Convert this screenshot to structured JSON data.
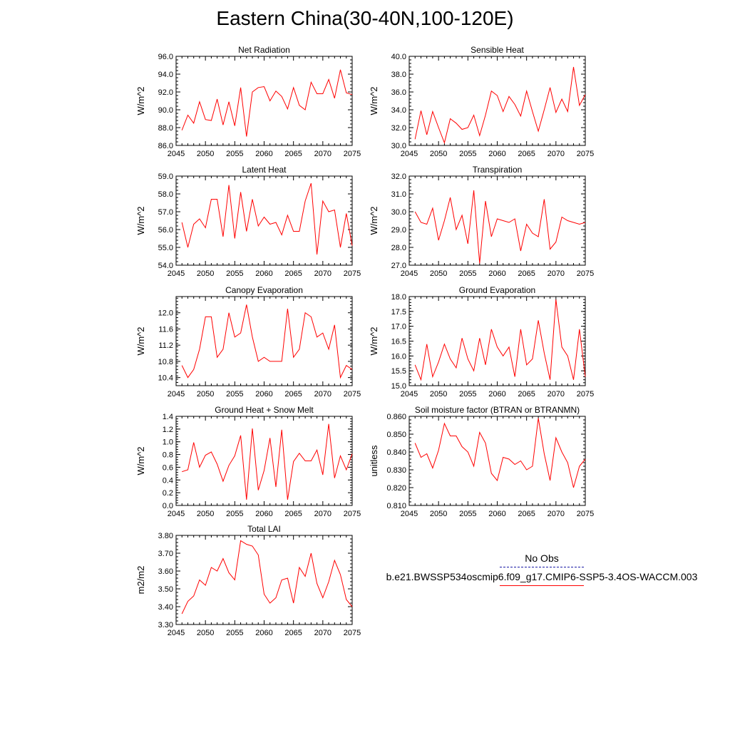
{
  "title": "Eastern China(30-40N,100-120E)",
  "colors": {
    "series": "#ff0000",
    "obs": "#1a1aa6",
    "axis": "#000000"
  },
  "legend": {
    "obs_label": "No Obs",
    "model_label": "b.e21.BWSSP534oscmip6.f09_g17.CMIP6-SSP5-3.4OS-WACCM.003"
  },
  "chart_data": [
    {
      "type": "line",
      "title": "Net Radiation",
      "ylabel": "W/m^2",
      "xlim": [
        2045,
        2075
      ],
      "ylim": [
        86.0,
        96.0
      ],
      "yticks": [
        "86.0",
        "88.0",
        "90.0",
        "92.0",
        "94.0",
        "96.0"
      ],
      "xticks": [
        "2045",
        "2050",
        "2055",
        "2060",
        "2065",
        "2070",
        "2075"
      ],
      "x": [
        2046,
        2047,
        2048,
        2049,
        2050,
        2051,
        2052,
        2053,
        2054,
        2055,
        2056,
        2057,
        2058,
        2059,
        2060,
        2061,
        2062,
        2063,
        2064,
        2065,
        2066,
        2067,
        2068,
        2069,
        2070,
        2071,
        2072,
        2073,
        2074,
        2075
      ],
      "series": [
        {
          "values": [
            87.7,
            89.4,
            88.5,
            90.9,
            88.9,
            88.8,
            91.2,
            88.3,
            90.9,
            88.2,
            92.5,
            87.0,
            92.0,
            92.5,
            92.6,
            91.0,
            92.1,
            91.5,
            90.1,
            92.5,
            90.5,
            90.0,
            93.1,
            91.8,
            91.8,
            93.4,
            91.3,
            94.5,
            91.9,
            91.7
          ]
        }
      ]
    },
    {
      "type": "line",
      "title": "Sensible Heat",
      "ylabel": "W/m^2",
      "xlim": [
        2045,
        2075
      ],
      "ylim": [
        30.0,
        40.0
      ],
      "yticks": [
        "30.0",
        "32.0",
        "34.0",
        "36.0",
        "38.0",
        "40.0"
      ],
      "xticks": [
        "2045",
        "2050",
        "2055",
        "2060",
        "2065",
        "2070",
        "2075"
      ],
      "x": [
        2046,
        2047,
        2048,
        2049,
        2050,
        2051,
        2052,
        2053,
        2054,
        2055,
        2056,
        2057,
        2058,
        2059,
        2060,
        2061,
        2062,
        2063,
        2064,
        2065,
        2066,
        2067,
        2068,
        2069,
        2070,
        2071,
        2072,
        2073,
        2074,
        2075
      ],
      "series": [
        {
          "values": [
            30.7,
            33.9,
            31.2,
            33.8,
            32.0,
            30.3,
            33.0,
            32.5,
            31.8,
            32.0,
            33.4,
            31.1,
            33.4,
            36.1,
            35.6,
            33.8,
            35.5,
            34.6,
            33.3,
            36.1,
            33.8,
            31.6,
            34.0,
            36.5,
            33.7,
            35.2,
            33.8,
            38.8,
            34.5,
            35.7
          ]
        }
      ]
    },
    {
      "type": "line",
      "title": "Latent Heat",
      "ylabel": "W/m^2",
      "xlim": [
        2045,
        2075
      ],
      "ylim": [
        54.0,
        59.0
      ],
      "yticks": [
        "54.0",
        "55.0",
        "56.0",
        "57.0",
        "58.0",
        "59.0"
      ],
      "xticks": [
        "2045",
        "2050",
        "2055",
        "2060",
        "2065",
        "2070",
        "2075"
      ],
      "x": [
        2046,
        2047,
        2048,
        2049,
        2050,
        2051,
        2052,
        2053,
        2054,
        2055,
        2056,
        2057,
        2058,
        2059,
        2060,
        2061,
        2062,
        2063,
        2064,
        2065,
        2066,
        2067,
        2068,
        2069,
        2070,
        2071,
        2072,
        2073,
        2074,
        2075
      ],
      "series": [
        {
          "values": [
            56.4,
            55.0,
            56.3,
            56.6,
            56.1,
            57.7,
            57.7,
            55.6,
            58.5,
            55.5,
            58.1,
            55.9,
            57.7,
            56.2,
            56.7,
            56.3,
            56.4,
            55.7,
            56.8,
            55.9,
            55.9,
            57.6,
            58.6,
            54.6,
            57.6,
            57.0,
            57.1,
            55.0,
            56.9,
            55.1
          ]
        }
      ]
    },
    {
      "type": "line",
      "title": "Transpiration",
      "ylabel": "W/m^2",
      "xlim": [
        2045,
        2075
      ],
      "ylim": [
        27.0,
        32.0
      ],
      "yticks": [
        "27.0",
        "28.0",
        "29.0",
        "30.0",
        "31.0",
        "32.0"
      ],
      "xticks": [
        "2045",
        "2050",
        "2055",
        "2060",
        "2065",
        "2070",
        "2075"
      ],
      "x": [
        2046,
        2047,
        2048,
        2049,
        2050,
        2051,
        2052,
        2053,
        2054,
        2055,
        2056,
        2057,
        2058,
        2059,
        2060,
        2061,
        2062,
        2063,
        2064,
        2065,
        2066,
        2067,
        2068,
        2069,
        2070,
        2071,
        2072,
        2073,
        2074,
        2075
      ],
      "series": [
        {
          "values": [
            30.0,
            29.4,
            29.3,
            30.2,
            28.4,
            29.5,
            30.8,
            29.0,
            29.8,
            28.2,
            31.2,
            27.1,
            30.6,
            28.6,
            29.6,
            29.5,
            29.4,
            29.6,
            27.8,
            29.3,
            28.8,
            28.6,
            30.7,
            27.9,
            28.3,
            29.7,
            29.5,
            29.4,
            29.3,
            29.4
          ]
        }
      ]
    },
    {
      "type": "line",
      "title": "Canopy Evaporation",
      "ylabel": "W/m^2",
      "xlim": [
        2045,
        2075
      ],
      "ylim": [
        10.2,
        12.4
      ],
      "yticks": [
        "10.4",
        "10.8",
        "11.2",
        "11.6",
        "12.0"
      ],
      "ytick_values": [
        10.4,
        10.8,
        11.2,
        11.6,
        12.0
      ],
      "xticks": [
        "2045",
        "2050",
        "2055",
        "2060",
        "2065",
        "2070",
        "2075"
      ],
      "x": [
        2046,
        2047,
        2048,
        2049,
        2050,
        2051,
        2052,
        2053,
        2054,
        2055,
        2056,
        2057,
        2058,
        2059,
        2060,
        2061,
        2062,
        2063,
        2064,
        2065,
        2066,
        2067,
        2068,
        2069,
        2070,
        2071,
        2072,
        2073,
        2074,
        2075
      ],
      "series": [
        {
          "values": [
            10.7,
            10.4,
            10.6,
            11.1,
            11.9,
            11.9,
            10.9,
            11.1,
            12.0,
            11.4,
            11.5,
            12.2,
            11.4,
            10.8,
            10.9,
            10.8,
            10.8,
            10.8,
            12.1,
            10.9,
            11.1,
            12.0,
            11.9,
            11.4,
            11.5,
            11.1,
            11.7,
            10.4,
            10.7,
            10.6
          ]
        }
      ]
    },
    {
      "type": "line",
      "title": "Ground Evaporation",
      "ylabel": "W/m^2",
      "xlim": [
        2045,
        2075
      ],
      "ylim": [
        15.0,
        18.0
      ],
      "yticks": [
        "15.0",
        "15.5",
        "16.0",
        "16.5",
        "17.0",
        "17.5",
        "18.0"
      ],
      "xticks": [
        "2045",
        "2050",
        "2055",
        "2060",
        "2065",
        "2070",
        "2075"
      ],
      "x": [
        2046,
        2047,
        2048,
        2049,
        2050,
        2051,
        2052,
        2053,
        2054,
        2055,
        2056,
        2057,
        2058,
        2059,
        2060,
        2061,
        2062,
        2063,
        2064,
        2065,
        2066,
        2067,
        2068,
        2069,
        2070,
        2071,
        2072,
        2073,
        2074,
        2075
      ],
      "series": [
        {
          "values": [
            15.7,
            15.2,
            16.4,
            15.3,
            15.8,
            16.4,
            15.9,
            15.6,
            16.6,
            15.9,
            15.5,
            16.6,
            15.7,
            16.9,
            16.3,
            16.0,
            16.3,
            15.3,
            16.9,
            15.7,
            15.9,
            17.2,
            16.1,
            15.2,
            17.9,
            16.3,
            16.0,
            15.2,
            16.9,
            15.3
          ]
        }
      ]
    },
    {
      "type": "line",
      "title": "Ground Heat + Snow Melt",
      "ylabel": "W/m^2",
      "xlim": [
        2045,
        2075
      ],
      "ylim": [
        0.0,
        1.4
      ],
      "yticks": [
        "0.0",
        "0.2",
        "0.4",
        "0.6",
        "0.8",
        "1.0",
        "1.2",
        "1.4"
      ],
      "xticks": [
        "2045",
        "2050",
        "2055",
        "2060",
        "2065",
        "2070",
        "2075"
      ],
      "x": [
        2046,
        2047,
        2048,
        2049,
        2050,
        2051,
        2052,
        2053,
        2054,
        2055,
        2056,
        2057,
        2058,
        2059,
        2060,
        2061,
        2062,
        2063,
        2064,
        2065,
        2066,
        2067,
        2068,
        2069,
        2070,
        2071,
        2072,
        2073,
        2074,
        2075
      ],
      "series": [
        {
          "values": [
            0.53,
            0.56,
            0.99,
            0.6,
            0.79,
            0.84,
            0.65,
            0.38,
            0.63,
            0.78,
            1.1,
            0.09,
            1.21,
            0.24,
            0.55,
            1.06,
            0.29,
            1.19,
            0.09,
            0.69,
            0.82,
            0.7,
            0.7,
            0.87,
            0.48,
            1.28,
            0.43,
            0.78,
            0.56,
            0.81
          ]
        }
      ]
    },
    {
      "type": "line",
      "title": "Soil moisture factor (BTRAN or BTRANMN)",
      "ylabel": "unitless",
      "xlim": [
        2045,
        2075
      ],
      "ylim": [
        0.81,
        0.86
      ],
      "yticks": [
        "0.810",
        "0.820",
        "0.830",
        "0.840",
        "0.850",
        "0.860"
      ],
      "xticks": [
        "2045",
        "2050",
        "2055",
        "2060",
        "2065",
        "2070",
        "2075"
      ],
      "x": [
        2046,
        2047,
        2048,
        2049,
        2050,
        2051,
        2052,
        2053,
        2054,
        2055,
        2056,
        2057,
        2058,
        2059,
        2060,
        2061,
        2062,
        2063,
        2064,
        2065,
        2066,
        2067,
        2068,
        2069,
        2070,
        2071,
        2072,
        2073,
        2074,
        2075
      ],
      "series": [
        {
          "values": [
            0.845,
            0.837,
            0.839,
            0.831,
            0.841,
            0.856,
            0.849,
            0.849,
            0.843,
            0.84,
            0.832,
            0.851,
            0.845,
            0.828,
            0.824,
            0.837,
            0.836,
            0.833,
            0.835,
            0.83,
            0.832,
            0.859,
            0.839,
            0.824,
            0.848,
            0.84,
            0.834,
            0.82,
            0.832,
            0.836
          ]
        }
      ]
    },
    {
      "type": "line",
      "title": "Total LAI",
      "ylabel": "m2/m2",
      "xlim": [
        2045,
        2075
      ],
      "ylim": [
        3.3,
        3.8
      ],
      "yticks": [
        "3.30",
        "3.40",
        "3.50",
        "3.60",
        "3.70",
        "3.80"
      ],
      "xticks": [
        "2045",
        "2050",
        "2055",
        "2060",
        "2065",
        "2070",
        "2075"
      ],
      "x": [
        2046,
        2047,
        2048,
        2049,
        2050,
        2051,
        2052,
        2053,
        2054,
        2055,
        2056,
        2057,
        2058,
        2059,
        2060,
        2061,
        2062,
        2063,
        2064,
        2065,
        2066,
        2067,
        2068,
        2069,
        2070,
        2071,
        2072,
        2073,
        2074,
        2075
      ],
      "series": [
        {
          "values": [
            3.36,
            3.43,
            3.46,
            3.55,
            3.52,
            3.62,
            3.6,
            3.67,
            3.59,
            3.55,
            3.77,
            3.75,
            3.74,
            3.69,
            3.47,
            3.42,
            3.45,
            3.55,
            3.56,
            3.42,
            3.62,
            3.57,
            3.7,
            3.53,
            3.45,
            3.54,
            3.66,
            3.58,
            3.44,
            3.4
          ]
        }
      ]
    }
  ]
}
